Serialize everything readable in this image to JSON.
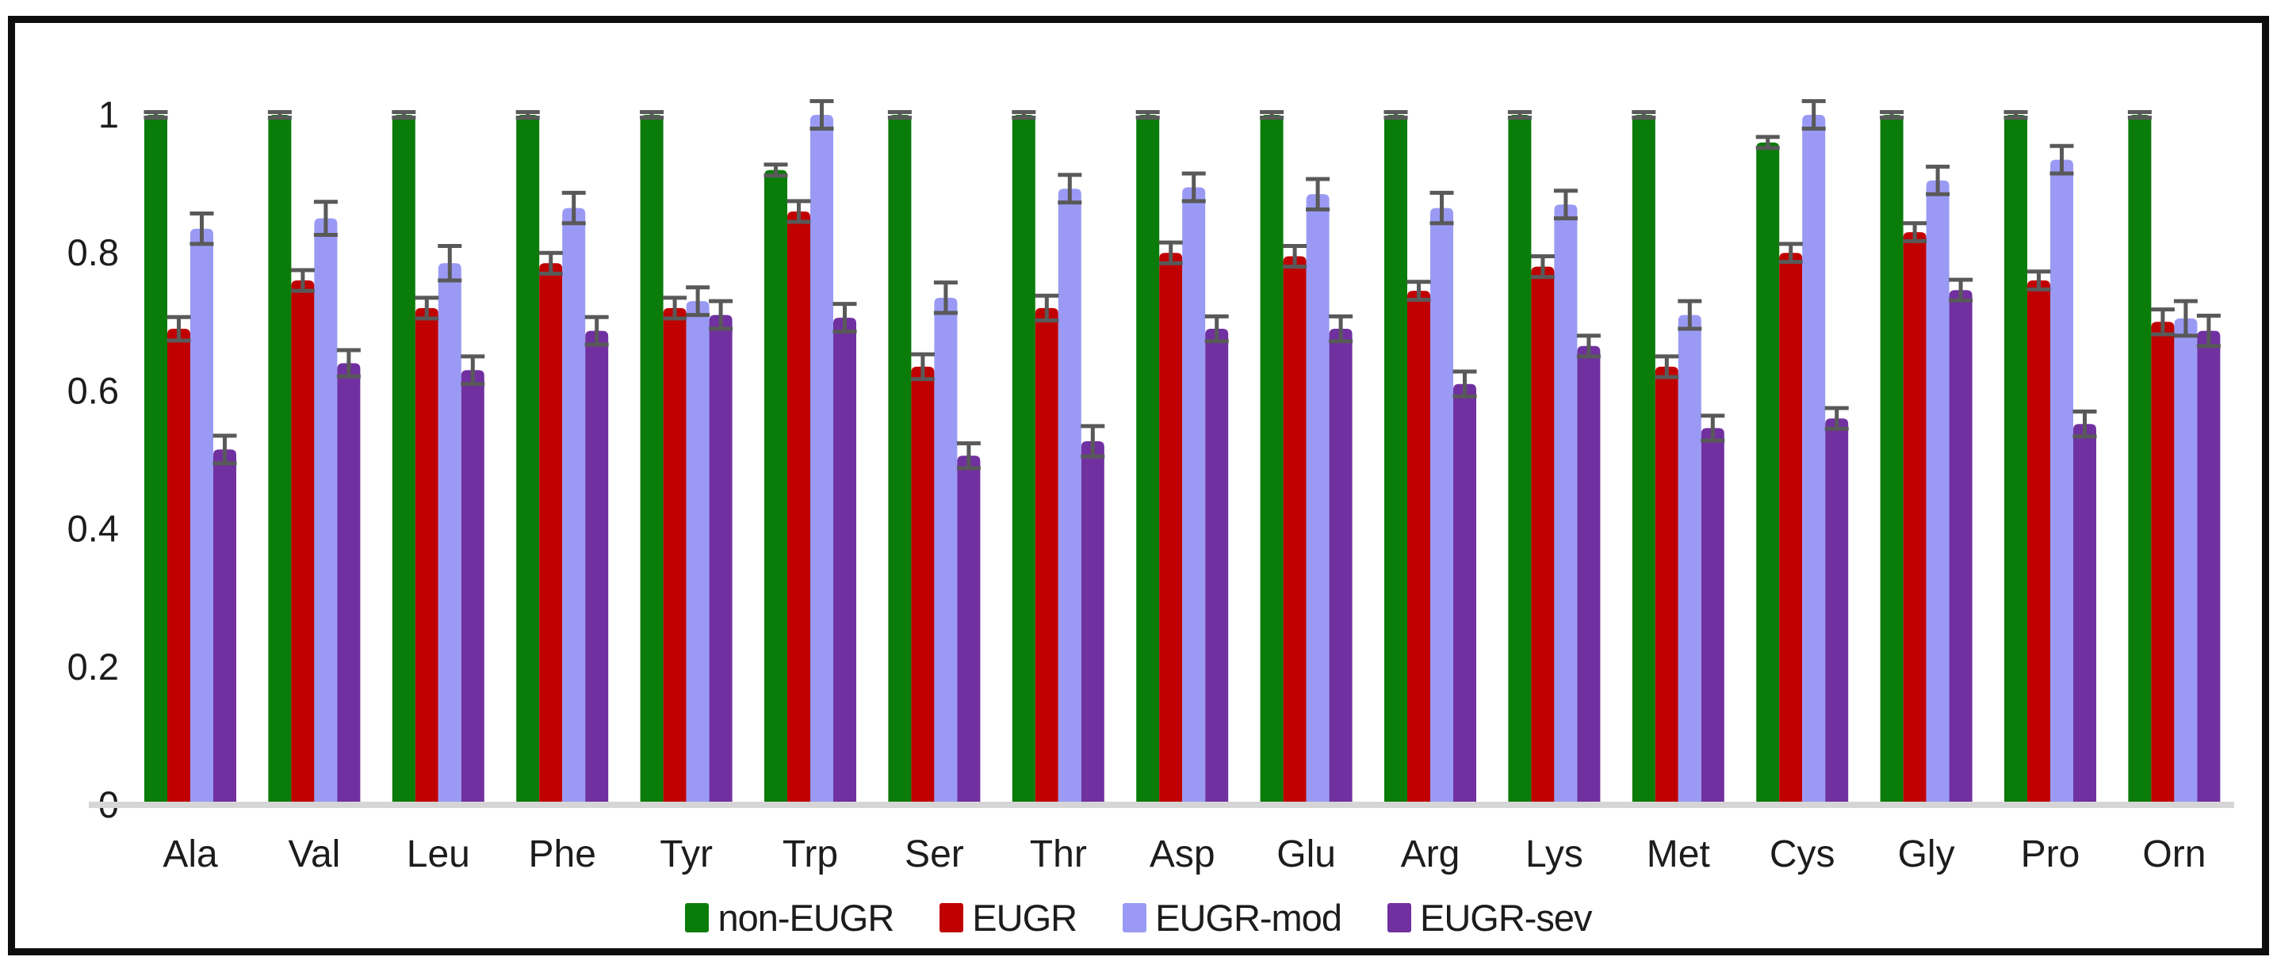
{
  "chart_data": {
    "type": "bar",
    "title": "",
    "xlabel": "",
    "ylabel": "",
    "categories": [
      "Ala",
      "Val",
      "Leu",
      "Phe",
      "Tyr",
      "Trp",
      "Ser",
      "Thr",
      "Asp",
      "Glu",
      "Arg",
      "Lys",
      "Met",
      "Cys",
      "Gly",
      "Pro",
      "Orn"
    ],
    "series": [
      {
        "name": "non-EUGR",
        "color": "#0a7c0a",
        "values": [
          1.0,
          1.0,
          1.0,
          1.0,
          1.0,
          0.92,
          1.0,
          1.0,
          1.0,
          1.0,
          1.0,
          1.0,
          1.0,
          0.96,
          1.0,
          1.0,
          1.0
        ],
        "errors": [
          0.004,
          0.004,
          0.004,
          0.004,
          0.004,
          0.008,
          0.004,
          0.004,
          0.004,
          0.004,
          0.004,
          0.004,
          0.004,
          0.008,
          0.004,
          0.004,
          0.004
        ]
      },
      {
        "name": "EUGR",
        "color": "#c00000",
        "values": [
          0.69,
          0.76,
          0.72,
          0.785,
          0.72,
          0.86,
          0.635,
          0.72,
          0.8,
          0.795,
          0.745,
          0.78,
          0.635,
          0.8,
          0.83,
          0.76,
          0.7
        ],
        "errors": [
          0.017,
          0.015,
          0.015,
          0.015,
          0.015,
          0.015,
          0.018,
          0.018,
          0.015,
          0.015,
          0.013,
          0.015,
          0.015,
          0.013,
          0.013,
          0.013,
          0.018
        ]
      },
      {
        "name": "EUGR-mod",
        "color": "#9a9af5",
        "values": [
          0.835,
          0.85,
          0.785,
          0.865,
          0.73,
          1.0,
          0.735,
          0.893,
          0.895,
          0.885,
          0.865,
          0.87,
          0.71,
          1.0,
          0.905,
          0.935,
          0.705
        ],
        "errors": [
          0.022,
          0.024,
          0.025,
          0.022,
          0.02,
          0.02,
          0.022,
          0.02,
          0.02,
          0.022,
          0.022,
          0.02,
          0.02,
          0.02,
          0.02,
          0.02,
          0.025
        ]
      },
      {
        "name": "EUGR-sev",
        "color": "#7030a0",
        "values": [
          0.515,
          0.64,
          0.63,
          0.687,
          0.71,
          0.706,
          0.506,
          0.527,
          0.69,
          0.69,
          0.61,
          0.665,
          0.546,
          0.56,
          0.746,
          0.552,
          0.687
        ],
        "errors": [
          0.02,
          0.019,
          0.02,
          0.02,
          0.02,
          0.02,
          0.018,
          0.022,
          0.018,
          0.018,
          0.018,
          0.015,
          0.018,
          0.015,
          0.015,
          0.018,
          0.022
        ]
      }
    ],
    "ylim": [
      0,
      1
    ],
    "yticks": [
      0,
      0.2,
      0.4,
      0.6,
      0.8,
      1
    ],
    "ytick_labels": [
      "0",
      "0.2",
      "0.4",
      "0.6",
      "0.8",
      "1"
    ],
    "grid": false,
    "legend_position": "bottom-center",
    "error_bar_color": "#595959",
    "axis_line_color": "#d6d6d6",
    "text_color": "#1c1c1c",
    "plot_background": "#ffffff",
    "frame_border_color": "#0d0d0d"
  }
}
